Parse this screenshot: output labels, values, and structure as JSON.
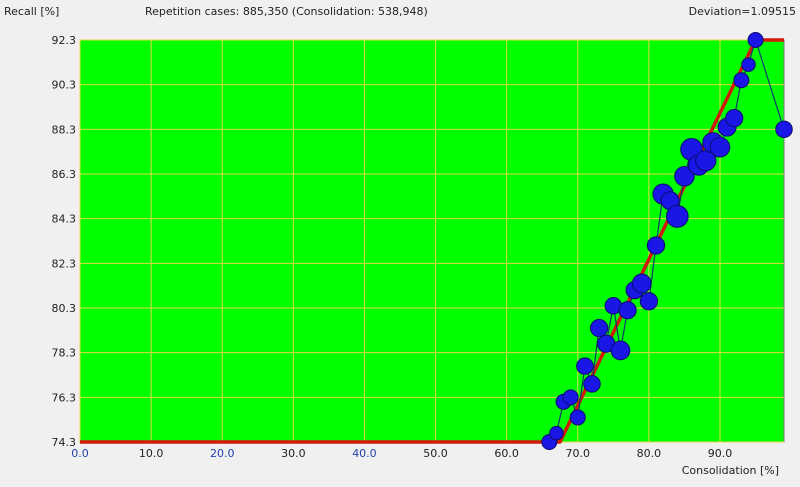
{
  "header": {
    "ylabel": "Recall [%]",
    "summary": "Repetition cases: 885,350 (Consolidation: 538,948)",
    "deviation": "Deviation=1.09515"
  },
  "colors": {
    "plot_bg": "#00ff00",
    "grid": "#e6d84a",
    "fit_line": "#d21a0a",
    "point_fill": "#1a16e6",
    "point_stroke": "#0b0a6e",
    "connector": "#0b3a6a",
    "tick_blue": "#1f3fb0"
  },
  "chart_data": {
    "type": "scatter",
    "xlabel": "Consolidation [%]",
    "ylabel": "Recall [%]",
    "xlim": [
      0,
      99
    ],
    "ylim": [
      74.3,
      92.3
    ],
    "x_ticks": [
      {
        "value": 0,
        "label": "0.0",
        "blue": true
      },
      {
        "value": 10,
        "label": "10.0",
        "blue": false
      },
      {
        "value": 20,
        "label": "20.0",
        "blue": true
      },
      {
        "value": 30,
        "label": "30.0",
        "blue": false
      },
      {
        "value": 40,
        "label": "40.0",
        "blue": true
      },
      {
        "value": 50,
        "label": "50.0",
        "blue": false
      },
      {
        "value": 60,
        "label": "60.0",
        "blue": false
      },
      {
        "value": 70,
        "label": "70.0",
        "blue": false
      },
      {
        "value": 80,
        "label": "80.0",
        "blue": false
      },
      {
        "value": 90,
        "label": "90.0",
        "blue": false
      }
    ],
    "y_ticks": [
      {
        "value": 74.3,
        "label": "74.3"
      },
      {
        "value": 76.3,
        "label": "76.3"
      },
      {
        "value": 78.3,
        "label": "78.3"
      },
      {
        "value": 80.3,
        "label": "80.3"
      },
      {
        "value": 82.3,
        "label": "82.3"
      },
      {
        "value": 84.3,
        "label": "84.3"
      },
      {
        "value": 86.3,
        "label": "86.3"
      },
      {
        "value": 88.3,
        "label": "88.3"
      },
      {
        "value": 90.3,
        "label": "90.3"
      },
      {
        "value": 92.3,
        "label": "92.3"
      }
    ],
    "fit_line": [
      [
        0,
        74.3
      ],
      [
        67.5,
        74.3
      ],
      [
        95,
        92.3
      ],
      [
        99,
        92.3
      ]
    ],
    "points": [
      {
        "x": 66,
        "y": 74.3,
        "size": 1.0
      },
      {
        "x": 67,
        "y": 74.7,
        "size": 0.9
      },
      {
        "x": 68,
        "y": 76.1,
        "size": 1.0
      },
      {
        "x": 69,
        "y": 76.3,
        "size": 1.0
      },
      {
        "x": 70,
        "y": 75.4,
        "size": 1.0
      },
      {
        "x": 71,
        "y": 77.7,
        "size": 1.1
      },
      {
        "x": 72,
        "y": 76.9,
        "size": 1.1
      },
      {
        "x": 73,
        "y": 79.4,
        "size": 1.15
      },
      {
        "x": 74,
        "y": 78.7,
        "size": 1.15
      },
      {
        "x": 75,
        "y": 80.4,
        "size": 1.1
      },
      {
        "x": 76,
        "y": 78.4,
        "size": 1.25
      },
      {
        "x": 77,
        "y": 80.2,
        "size": 1.15
      },
      {
        "x": 78,
        "y": 81.1,
        "size": 1.15
      },
      {
        "x": 79,
        "y": 81.4,
        "size": 1.25
      },
      {
        "x": 80,
        "y": 80.6,
        "size": 1.15
      },
      {
        "x": 81,
        "y": 83.1,
        "size": 1.15
      },
      {
        "x": 82,
        "y": 85.4,
        "size": 1.35
      },
      {
        "x": 83,
        "y": 85.1,
        "size": 1.2
      },
      {
        "x": 84,
        "y": 84.4,
        "size": 1.45
      },
      {
        "x": 85,
        "y": 86.2,
        "size": 1.3
      },
      {
        "x": 86,
        "y": 87.4,
        "size": 1.45
      },
      {
        "x": 87,
        "y": 86.7,
        "size": 1.35
      },
      {
        "x": 88,
        "y": 86.9,
        "size": 1.35
      },
      {
        "x": 89,
        "y": 87.7,
        "size": 1.35
      },
      {
        "x": 90,
        "y": 87.5,
        "size": 1.3
      },
      {
        "x": 91,
        "y": 88.4,
        "size": 1.2
      },
      {
        "x": 92,
        "y": 88.8,
        "size": 1.15
      },
      {
        "x": 93,
        "y": 90.5,
        "size": 1.0
      },
      {
        "x": 94,
        "y": 91.2,
        "size": 0.9
      },
      {
        "x": 95,
        "y": 92.3,
        "size": 1.0
      },
      {
        "x": 99,
        "y": 88.3,
        "size": 1.1
      }
    ]
  }
}
